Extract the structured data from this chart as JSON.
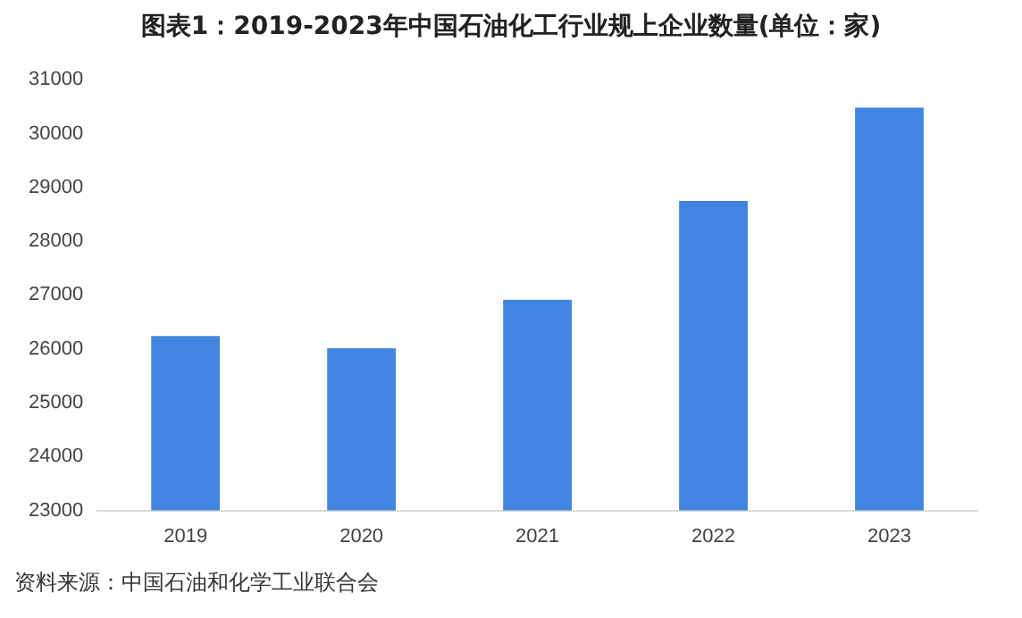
{
  "chart_data": {
    "type": "bar",
    "title": "图表1：2019-2023年中国石油化工行业规上企业数量(单位：家)",
    "categories": [
      "2019",
      "2020",
      "2021",
      "2022",
      "2023"
    ],
    "values": [
      26240,
      26010,
      26910,
      28750,
      30480
    ],
    "color": "#4285e0",
    "ylim": [
      23000,
      31000
    ],
    "yticks": [
      23000,
      24000,
      25000,
      26000,
      27000,
      28000,
      29000,
      30000,
      31000
    ],
    "grid": false,
    "legend": false,
    "annotations": [
      "资料来源：中国石油和化学工业联合会"
    ]
  }
}
